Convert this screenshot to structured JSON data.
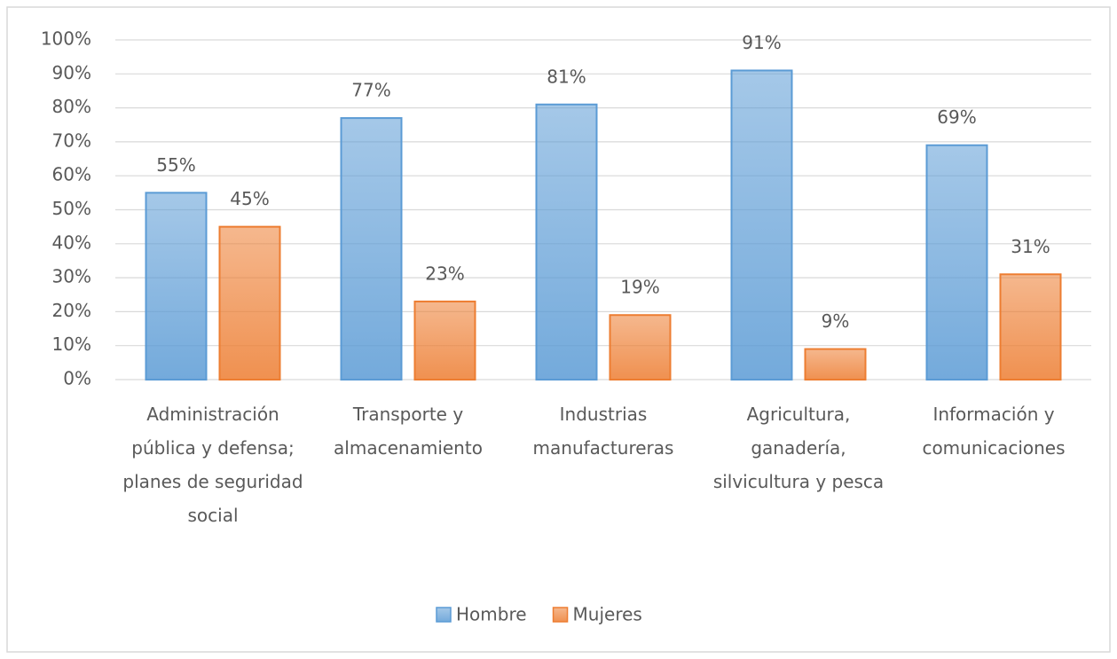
{
  "chart_data": {
    "type": "bar",
    "categories": [
      "Administración pública y defensa; planes de seguridad social",
      "Transporte y almacenamiento",
      "Industrias manufactureras",
      "Agricultura, ganadería, silvicultura y pesca",
      "Información y comunicaciones"
    ],
    "series": [
      {
        "name": "Hombre",
        "color": "#5b9bd5",
        "values": [
          55,
          77,
          81,
          91,
          69
        ],
        "value_labels": [
          "55%",
          "77%",
          "81%",
          "91%",
          "69%"
        ]
      },
      {
        "name": "Mujeres",
        "color": "#ed7d31",
        "values": [
          45,
          23,
          19,
          9,
          31
        ],
        "value_labels": [
          "45%",
          "23%",
          "19%",
          "9%",
          "31%"
        ]
      }
    ],
    "ylim": [
      0,
      100
    ],
    "yticks": [
      {
        "value": 0,
        "label": "0%"
      },
      {
        "value": 10,
        "label": "10%"
      },
      {
        "value": 20,
        "label": "20%"
      },
      {
        "value": 30,
        "label": "30%"
      },
      {
        "value": 40,
        "label": "40%"
      },
      {
        "value": 50,
        "label": "50%"
      },
      {
        "value": 60,
        "label": "60%"
      },
      {
        "value": 70,
        "label": "70%"
      },
      {
        "value": 80,
        "label": "80%"
      },
      {
        "value": 90,
        "label": "90%"
      },
      {
        "value": 100,
        "label": "100%"
      }
    ],
    "grid": true,
    "legend": "bottom"
  }
}
